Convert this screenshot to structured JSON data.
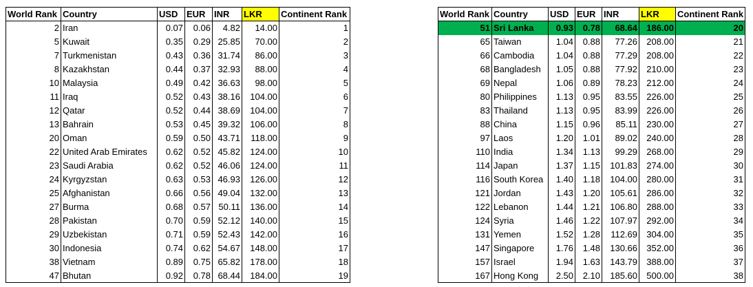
{
  "left_table": {
    "headers": [
      "World Rank",
      "Country",
      "USD",
      "EUR",
      "INR",
      "LKR",
      "Continent Rank"
    ],
    "rows": [
      [
        "2",
        "Iran",
        "0.07",
        "0.06",
        "4.82",
        "14.00",
        "1"
      ],
      [
        "5",
        "Kuwait",
        "0.35",
        "0.29",
        "25.85",
        "70.00",
        "2"
      ],
      [
        "7",
        "Turkmenistan",
        "0.43",
        "0.36",
        "31.74",
        "86.00",
        "3"
      ],
      [
        "8",
        "Kazakhstan",
        "0.44",
        "0.37",
        "32.93",
        "88.00",
        "4"
      ],
      [
        "10",
        "Malaysia",
        "0.49",
        "0.42",
        "36.63",
        "98.00",
        "5"
      ],
      [
        "11",
        "Iraq",
        "0.52",
        "0.43",
        "38.16",
        "104.00",
        "6"
      ],
      [
        "12",
        "Qatar",
        "0.52",
        "0.44",
        "38.69",
        "104.00",
        "7"
      ],
      [
        "13",
        "Bahrain",
        "0.53",
        "0.45",
        "39.32",
        "106.00",
        "8"
      ],
      [
        "20",
        "Oman",
        "0.59",
        "0.50",
        "43.71",
        "118.00",
        "9"
      ],
      [
        "22",
        "United Arab Emirates",
        "0.62",
        "0.52",
        "45.82",
        "124.00",
        "10"
      ],
      [
        "23",
        "Saudi Arabia",
        "0.62",
        "0.52",
        "46.06",
        "124.00",
        "11"
      ],
      [
        "24",
        "Kyrgyzstan",
        "0.63",
        "0.53",
        "46.93",
        "126.00",
        "12"
      ],
      [
        "25",
        "Afghanistan",
        "0.66",
        "0.56",
        "49.04",
        "132.00",
        "13"
      ],
      [
        "27",
        "Burma",
        "0.68",
        "0.57",
        "50.11",
        "136.00",
        "14"
      ],
      [
        "28",
        "Pakistan",
        "0.70",
        "0.59",
        "52.12",
        "140.00",
        "15"
      ],
      [
        "29",
        "Uzbekistan",
        "0.71",
        "0.59",
        "52.43",
        "142.00",
        "16"
      ],
      [
        "30",
        "Indonesia",
        "0.74",
        "0.62",
        "54.67",
        "148.00",
        "17"
      ],
      [
        "38",
        "Vietnam",
        "0.89",
        "0.75",
        "65.82",
        "178.00",
        "18"
      ],
      [
        "47",
        "Bhutan",
        "0.92",
        "0.78",
        "68.44",
        "184.00",
        "19"
      ]
    ]
  },
  "right_table": {
    "headers": [
      "World Rank",
      "Country",
      "USD",
      "EUR",
      "INR",
      "LKR",
      "Continent Rank"
    ],
    "rows": [
      [
        "51",
        "Sri Lanka",
        "0.93",
        "0.78",
        "68.64",
        "186.00",
        "20"
      ],
      [
        "65",
        "Taiwan",
        "1.04",
        "0.88",
        "77.26",
        "208.00",
        "21"
      ],
      [
        "66",
        "Cambodia",
        "1.04",
        "0.88",
        "77.29",
        "208.00",
        "22"
      ],
      [
        "68",
        "Bangladesh",
        "1.05",
        "0.88",
        "77.92",
        "210.00",
        "23"
      ],
      [
        "69",
        "Nepal",
        "1.06",
        "0.89",
        "78.23",
        "212.00",
        "24"
      ],
      [
        "80",
        "Philippines",
        "1.13",
        "0.95",
        "83.55",
        "226.00",
        "25"
      ],
      [
        "83",
        "Thailand",
        "1.13",
        "0.95",
        "83.99",
        "226.00",
        "26"
      ],
      [
        "88",
        "China",
        "1.15",
        "0.96",
        "85.11",
        "230.00",
        "27"
      ],
      [
        "97",
        "Laos",
        "1.20",
        "1.01",
        "89.02",
        "240.00",
        "28"
      ],
      [
        "110",
        "India",
        "1.34",
        "1.13",
        "99.29",
        "268.00",
        "29"
      ],
      [
        "114",
        "Japan",
        "1.37",
        "1.15",
        "101.83",
        "274.00",
        "30"
      ],
      [
        "116",
        "South Korea",
        "1.40",
        "1.18",
        "104.00",
        "280.00",
        "31"
      ],
      [
        "121",
        "Jordan",
        "1.43",
        "1.20",
        "105.61",
        "286.00",
        "32"
      ],
      [
        "122",
        "Lebanon",
        "1.44",
        "1.21",
        "106.80",
        "288.00",
        "33"
      ],
      [
        "124",
        "Syria",
        "1.46",
        "1.22",
        "107.97",
        "292.00",
        "34"
      ],
      [
        "131",
        "Yemen",
        "1.52",
        "1.28",
        "112.69",
        "304.00",
        "35"
      ],
      [
        "147",
        "Singapore",
        "1.76",
        "1.48",
        "130.66",
        "352.00",
        "36"
      ],
      [
        "157",
        "Israel",
        "1.94",
        "1.63",
        "143.79",
        "388.00",
        "37"
      ],
      [
        "167",
        "Hong Kong",
        "2.50",
        "2.10",
        "185.60",
        "500.00",
        "38"
      ]
    ]
  }
}
